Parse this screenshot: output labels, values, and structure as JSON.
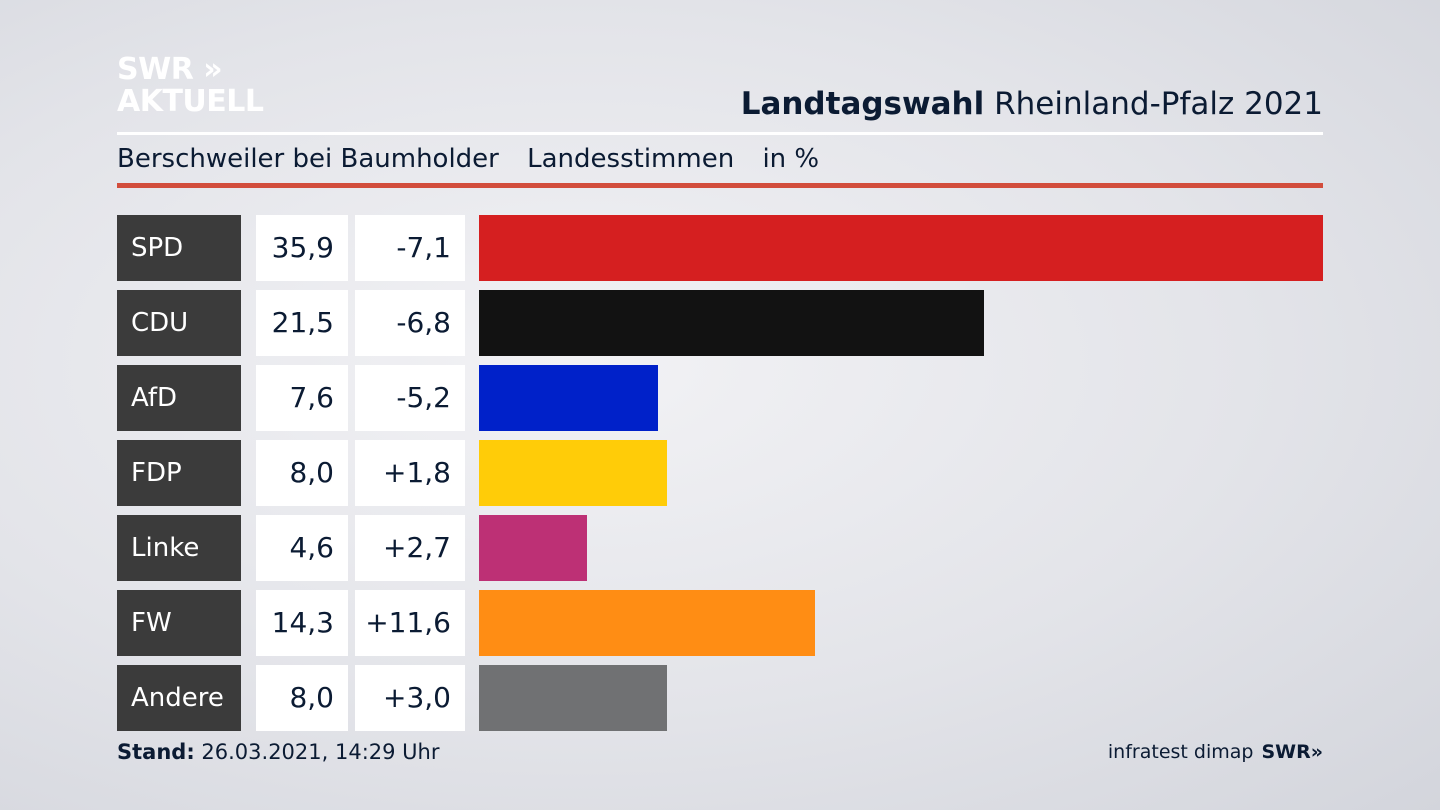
{
  "header": {
    "logo_line1": "SWR »",
    "logo_line2": "AKTUELL",
    "title_bold": "Landtagswahl",
    "title_rest": " Rheinland-Pfalz 2021",
    "subtitle_place": "Berschweiler bei Baumholder",
    "subtitle_kind": "Landesstimmen",
    "subtitle_unit": "in %"
  },
  "chart_data": {
    "type": "bar",
    "categories": [
      "SPD",
      "CDU",
      "AfD",
      "FDP",
      "Linke",
      "FW",
      "Andere"
    ],
    "values": [
      35.9,
      21.5,
      7.6,
      8.0,
      4.6,
      14.3,
      8.0
    ],
    "value_labels": [
      "35,9",
      "21,5",
      "7,6",
      "8,0",
      "4,6",
      "14,3",
      "8,0"
    ],
    "diff_labels": [
      "-7,1",
      "-6,8",
      "-5,2",
      "+1,8",
      "+2,7",
      "+11,6",
      "+3,0"
    ],
    "diffs": [
      -7.1,
      -6.8,
      -5.2,
      1.8,
      2.7,
      11.6,
      3.0
    ],
    "colors": [
      "#d51f20",
      "#121212",
      "#0021c9",
      "#ffcc08",
      "#bd3075",
      "#ff8d14",
      "#707173"
    ],
    "xlim": [
      0,
      35.9
    ],
    "orientation": "horizontal",
    "grid": false
  },
  "footer": {
    "stand_label": "Stand:",
    "stand_value": " 26.03.2021, 14:29 Uhr",
    "source": "infratest dimap",
    "brand": "SWR»"
  }
}
